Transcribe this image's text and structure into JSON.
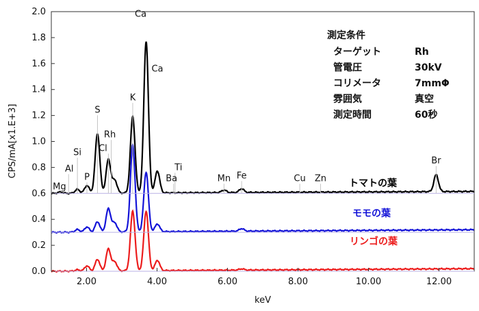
{
  "chart_data": {
    "type": "line",
    "xlabel": "keV",
    "ylabel": "CPS/mA[x1.E+3]",
    "xlim": [
      1.0,
      13.0
    ],
    "ylim": [
      0.0,
      2.0
    ],
    "xticks": [
      "2.00",
      "4.00",
      "6.00",
      "8.00",
      "10.00",
      "12.00"
    ],
    "yticks": [
      "0.0",
      "0.2",
      "0.4",
      "0.6",
      "0.8",
      "1.0",
      "1.2",
      "1.4",
      "1.6",
      "1.8",
      "2.0"
    ],
    "grid": "off",
    "peaks": [
      {
        "label": "Mg",
        "keV": 1.25
      },
      {
        "label": "Al",
        "keV": 1.49
      },
      {
        "label": "Si",
        "keV": 1.74
      },
      {
        "label": "P",
        "keV": 2.01
      },
      {
        "label": "S",
        "keV": 2.31
      },
      {
        "label": "Rh",
        "keV": 2.7
      },
      {
        "label": "Cl",
        "keV": 2.62
      },
      {
        "label": "K",
        "keV": 3.31
      },
      {
        "label": "Ca",
        "keV": 3.69
      },
      {
        "label": "Ca",
        "keV": 4.01
      },
      {
        "label": "Ti",
        "keV": 4.51
      },
      {
        "label": "Ba",
        "keV": 4.47
      },
      {
        "label": "Mn",
        "keV": 5.9
      },
      {
        "label": "Fe",
        "keV": 6.4
      },
      {
        "label": "Cu",
        "keV": 8.05
      },
      {
        "label": "Zn",
        "keV": 8.64
      },
      {
        "label": "Br",
        "keV": 11.92
      }
    ],
    "series": [
      {
        "name": "トマトの葉",
        "color": "#000000",
        "baseline": 0.6,
        "rise": 0.015,
        "peaks": [
          [
            1.25,
            0.01
          ],
          [
            1.74,
            0.03
          ],
          [
            2.01,
            0.06
          ],
          [
            2.31,
            0.46
          ],
          [
            2.62,
            0.26
          ],
          [
            2.8,
            0.1
          ],
          [
            3.31,
            0.59
          ],
          [
            3.69,
            1.17
          ],
          [
            4.01,
            0.17
          ],
          [
            5.9,
            0.02
          ],
          [
            6.4,
            0.03
          ],
          [
            11.92,
            0.13
          ]
        ]
      },
      {
        "name": "モモの葉",
        "color": "#1414d8",
        "baseline": 0.3,
        "rise": 0.02,
        "peaks": [
          [
            1.74,
            0.02
          ],
          [
            2.01,
            0.04
          ],
          [
            2.31,
            0.08
          ],
          [
            2.62,
            0.18
          ],
          [
            2.8,
            0.07
          ],
          [
            3.31,
            0.67
          ],
          [
            3.69,
            0.46
          ],
          [
            4.01,
            0.06
          ],
          [
            6.4,
            0.02
          ]
        ]
      },
      {
        "name": "リンゴの葉",
        "color": "#ec1c1c",
        "baseline": 0.0,
        "rise": 0.02,
        "peaks": [
          [
            1.74,
            0.01
          ],
          [
            2.01,
            0.04
          ],
          [
            2.31,
            0.09
          ],
          [
            2.62,
            0.17
          ],
          [
            2.8,
            0.07
          ],
          [
            3.31,
            0.46
          ],
          [
            3.69,
            0.46
          ],
          [
            4.01,
            0.08
          ],
          [
            6.4,
            0.01
          ]
        ]
      }
    ],
    "conditions": {
      "title": "測定条件",
      "rows": [
        {
          "key": "ターゲット",
          "value": "Rh"
        },
        {
          "key": "管電圧",
          "value": "30kV"
        },
        {
          "key": "コリメータ",
          "value": "7mmΦ"
        },
        {
          "key": "雰囲気",
          "value": "真空"
        },
        {
          "key": "測定時間",
          "value": "60秒"
        }
      ]
    }
  }
}
